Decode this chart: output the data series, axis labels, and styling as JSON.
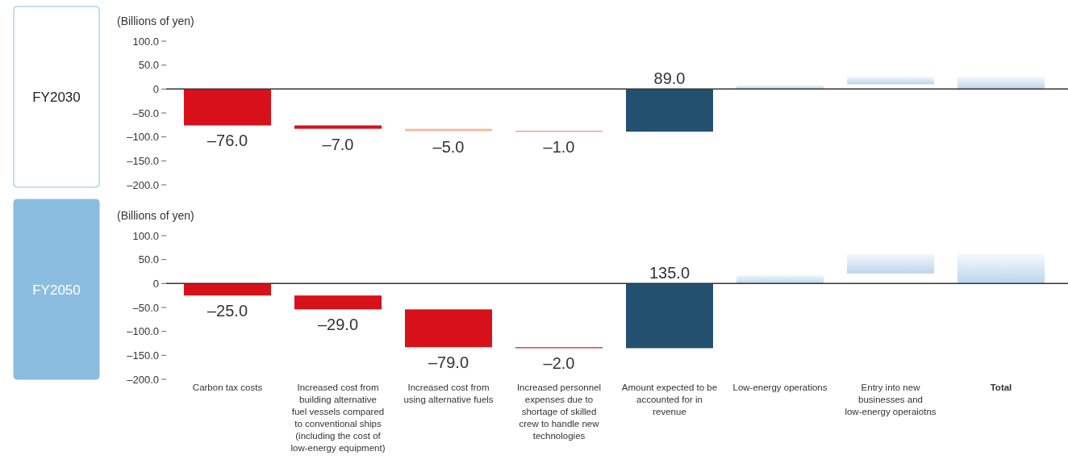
{
  "chart_data": [
    {
      "type": "bar",
      "title": "FY2030",
      "ylabel": "(Billions of yen)",
      "tick_labels": "y",
      "categories": [
        null,
        null,
        null,
        null,
        null,
        null,
        null,
        null
      ],
      "values": [
        -76,
        -7,
        -5,
        -1,
        89,
        8,
        16,
        26
      ],
      "base": [
        0,
        -76,
        -83,
        -88,
        -89,
        0,
        10,
        0
      ],
      "colors": [
        "#d7101a",
        "#d7101a",
        "#f4bc9f",
        "#d7101a",
        "#24506f",
        "#bcd5ee",
        "#bcd5ee",
        "#bcd5ee"
      ],
      "value_labels": [
        "–76.0",
        "–7.0",
        "–5.0",
        "–1.0",
        "89.0",
        null,
        null,
        null
      ],
      "ylim": [
        -200,
        100
      ],
      "yticks": [
        {
          "value": 100,
          "label": "100.0"
        },
        {
          "value": 50,
          "label": "50.0"
        },
        0,
        {
          "value": -50,
          "label": "–50.0"
        },
        {
          "value": -100,
          "label": "–100.0"
        },
        {
          "value": -150,
          "label": "–150.0"
        },
        {
          "value": -200,
          "label": "–200.0"
        }
      ]
    },
    {
      "type": "bar",
      "title": "FY2050",
      "ylabel": "(Billions of yen)",
      "categories": [
        "Carbon tax costs",
        "Increased cost from building alternative fuel vessels compared to conventional ships (including the cost of low-energy equipment)",
        "Increased cost from using alternative fuels",
        "Increased personnel expenses due to shortage of skilled crew to handle new technologies",
        "Amount expected to be accounted for in revenue",
        "Low-energy operations",
        "Entry into new businesses and low-energy operaiotns",
        "Total"
      ],
      "values": [
        -25,
        -29,
        -79,
        -2,
        135,
        18,
        41,
        62
      ],
      "base": [
        0,
        -25,
        -54,
        -133,
        -135,
        0,
        21,
        0
      ],
      "colors": [
        "#d7101a",
        "#d7101a",
        "#d7101a",
        "#d7101a",
        "#24506f",
        "#bcd5ee",
        "#bcd5ee",
        "#bcd5ee"
      ],
      "value_labels": [
        "–25.0",
        "–29.0",
        "–79.0",
        "–2.0",
        "135.0",
        null,
        null,
        null
      ],
      "ylim": [
        -200,
        100
      ],
      "yticks": [
        {
          "value": 100,
          "label": "100.0"
        },
        {
          "value": 50,
          "label": "50.0"
        },
        0,
        {
          "value": -50,
          "label": "–50.0"
        },
        {
          "value": -100,
          "label": "–100.0"
        },
        {
          "value": -150,
          "label": "–150.0"
        },
        {
          "value": -200,
          "label": "–200.0"
        }
      ]
    }
  ]
}
